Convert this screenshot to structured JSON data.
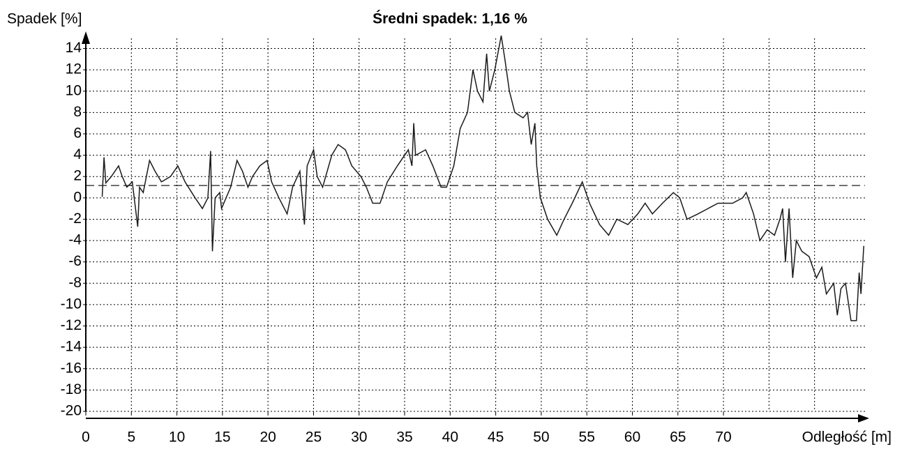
{
  "chart_data": {
    "type": "line",
    "title": "Średni spadek: 1,16 %",
    "y_label": "Spadek [%]",
    "x_label": "Odległość [m]",
    "xlim": [
      0,
      86
    ],
    "ylim": [
      -20,
      15.6
    ],
    "xticks": [
      0,
      5,
      10,
      15,
      20,
      25,
      30,
      35,
      40,
      45,
      50,
      55,
      60,
      65,
      70
    ],
    "xgrid": [
      5,
      10,
      15,
      20,
      25,
      30,
      35,
      40,
      45,
      50,
      55,
      60,
      65,
      70,
      75,
      80
    ],
    "yticks": [
      -20,
      -18,
      -16,
      -14,
      -12,
      -10,
      -8,
      -6,
      -4,
      -2,
      0,
      2,
      4,
      6,
      8,
      10,
      12,
      14
    ],
    "grid": true,
    "mean_line": 1.16,
    "x": [
      1.8,
      2.0,
      2.2,
      2.8,
      3.6,
      4.0,
      4.5,
      5.1,
      5.7,
      5.9,
      6.3,
      7.0,
      7.6,
      8.3,
      9.3,
      10.1,
      10.9,
      12.0,
      12.8,
      13.4,
      13.7,
      13.9,
      14.2,
      14.7,
      14.9,
      15.9,
      16.6,
      17.2,
      17.8,
      18.3,
      19.1,
      19.9,
      20.4,
      21.2,
      22.1,
      22.7,
      23.5,
      24.0,
      24.3,
      25.0,
      25.4,
      26.0,
      27.0,
      27.7,
      28.5,
      29.2,
      30.2,
      30.8,
      31.5,
      32.3,
      33.1,
      34.2,
      35.4,
      35.8,
      36.0,
      36.2,
      37.3,
      38.1,
      39.0,
      39.6,
      40.4,
      41.1,
      41.9,
      42.5,
      43.0,
      43.6,
      44.0,
      44.3,
      44.9,
      45.6,
      46.0,
      46.5,
      47.1,
      48.0,
      48.5,
      48.9,
      49.3,
      49.5,
      49.9,
      50.7,
      51.7,
      52.5,
      53.4,
      54.5,
      55.3,
      56.4,
      57.4,
      58.3,
      59.5,
      60.6,
      61.4,
      62.2,
      63.3,
      64.5,
      65.2,
      66.0,
      67.2,
      68.3,
      69.4,
      71.0,
      72.1,
      72.5,
      73.3,
      74.0,
      74.8,
      75.6,
      76.2,
      76.5,
      76.8,
      77.2,
      77.6,
      78.0,
      78.6,
      79.4,
      80.2,
      80.8,
      81.3,
      82.1,
      82.5,
      82.9,
      83.4,
      84.0,
      84.6,
      84.9,
      85.1,
      85.4
    ],
    "series": [
      {
        "name": "Spadek",
        "color": "#1a1a1a",
        "values": [
          0.1,
          3.8,
          1.4,
          2,
          3,
          2,
          1,
          1.5,
          -2.7,
          1,
          0.5,
          3.5,
          2.5,
          1.5,
          2,
          3,
          1.5,
          0,
          -1,
          0,
          4.4,
          -5,
          0,
          0.5,
          -1,
          1,
          3.5,
          2.5,
          1,
          2,
          3,
          3.5,
          1.5,
          0,
          -1.5,
          1,
          2.5,
          -2.5,
          3,
          4.5,
          2,
          1,
          4,
          5,
          4.5,
          3,
          2,
          1,
          -0.5,
          -0.5,
          1.5,
          3,
          4.5,
          3,
          7,
          4,
          4.5,
          3,
          1,
          1,
          3,
          6.5,
          8,
          12,
          10,
          9,
          13.5,
          10,
          12,
          15.2,
          13,
          10,
          8,
          7.5,
          8,
          5,
          7,
          3,
          0,
          -2,
          -3.5,
          -2,
          -0.5,
          1.5,
          -0.5,
          -2.5,
          -3.5,
          -2,
          -2.5,
          -1.5,
          -0.5,
          -1.5,
          -0.5,
          0.5,
          0,
          -2,
          -1.5,
          -1,
          -0.5,
          -0.5,
          0,
          0.5,
          -1.5,
          -4,
          -3,
          -3.5,
          -2,
          -1,
          -6,
          -1,
          -7.5,
          -4,
          -5,
          -5.5,
          -7.5,
          -6.5,
          -9,
          -8,
          -11,
          -8.5,
          -8,
          -11.5,
          -11.5,
          -7,
          -9,
          -4.5
        ]
      }
    ]
  }
}
